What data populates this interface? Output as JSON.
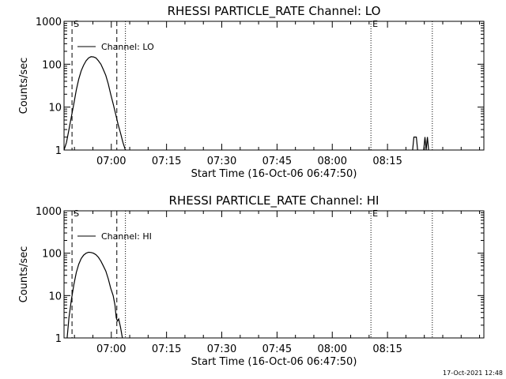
{
  "timestamp": "17-Oct-2021 12:48",
  "colors": {
    "background": "#ffffff",
    "foreground": "#000000"
  },
  "chart_data": [
    {
      "type": "line",
      "title": "RHESSI PARTICLE_RATE Channel: LO",
      "xlabel": "Start Time (16-Oct-06 06:47:50)",
      "ylabel": "Counts/sec",
      "yscale": "log",
      "ylim": [
        1,
        1000
      ],
      "yticks": [
        {
          "v": 1,
          "label": "1"
        },
        {
          "v": 10,
          "label": "10"
        },
        {
          "v": 100,
          "label": "100"
        },
        {
          "v": 1000,
          "label": "1000"
        }
      ],
      "xlim_min": [
        0,
        6840
      ],
      "xticks": [
        {
          "v": 770,
          "label": "07:00"
        },
        {
          "v": 1670,
          "label": "07:15"
        },
        {
          "v": 2570,
          "label": "07:30"
        },
        {
          "v": 3470,
          "label": "07:45"
        },
        {
          "v": 4370,
          "label": "08:00"
        },
        {
          "v": 5270,
          "label": "08:15"
        }
      ],
      "legend": "Channel: LO",
      "legend_position": "top-left",
      "markers": [
        {
          "label": "S",
          "x": 130,
          "style": "dashed"
        },
        {
          "label": "",
          "x": 860,
          "style": "dashed"
        },
        {
          "label": "",
          "x": 1000,
          "style": "dotted"
        },
        {
          "label": "E",
          "x": 5000,
          "style": "dotted"
        },
        {
          "label": "",
          "x": 6000,
          "style": "dotted"
        }
      ],
      "series": [
        {
          "name": "Channel: LO",
          "segments": [
            [
              [
                0,
                1
              ],
              [
                40,
                1.5
              ],
              [
                80,
                3
              ],
              [
                120,
                6
              ],
              [
                160,
                12
              ],
              [
                200,
                25
              ],
              [
                240,
                45
              ],
              [
                280,
                70
              ],
              [
                320,
                95
              ],
              [
                360,
                120
              ],
              [
                400,
                140
              ],
              [
                440,
                150
              ],
              [
                480,
                148
              ],
              [
                520,
                140
              ],
              [
                560,
                120
              ],
              [
                600,
                100
              ],
              [
                640,
                75
              ],
              [
                680,
                55
              ],
              [
                720,
                35
              ],
              [
                760,
                20
              ],
              [
                800,
                12
              ],
              [
                840,
                7
              ],
              [
                880,
                4
              ],
              [
                920,
                2.5
              ],
              [
                960,
                1.5
              ],
              [
                1000,
                1
              ]
            ],
            [
              [
                5680,
                1
              ],
              [
                5700,
                2
              ],
              [
                5740,
                2
              ],
              [
                5760,
                1
              ]
            ],
            [
              [
                5860,
                1
              ],
              [
                5880,
                2
              ],
              [
                5900,
                1
              ],
              [
                5920,
                2
              ],
              [
                5940,
                1
              ]
            ]
          ]
        }
      ]
    },
    {
      "type": "line",
      "title": "RHESSI PARTICLE_RATE Channel: HI",
      "xlabel": "Start Time (16-Oct-06 06:47:50)",
      "ylabel": "Counts/sec",
      "yscale": "log",
      "ylim": [
        1,
        1000
      ],
      "yticks": [
        {
          "v": 1,
          "label": "1"
        },
        {
          "v": 10,
          "label": "10"
        },
        {
          "v": 100,
          "label": "100"
        },
        {
          "v": 1000,
          "label": "1000"
        }
      ],
      "xlim_min": [
        0,
        6840
      ],
      "xticks": [
        {
          "v": 770,
          "label": "07:00"
        },
        {
          "v": 1670,
          "label": "07:15"
        },
        {
          "v": 2570,
          "label": "07:30"
        },
        {
          "v": 3470,
          "label": "07:45"
        },
        {
          "v": 4370,
          "label": "08:00"
        },
        {
          "v": 5270,
          "label": "08:15"
        }
      ],
      "legend": "Channel: HI",
      "legend_position": "top-left",
      "markers": [
        {
          "label": "S",
          "x": 130,
          "style": "dashed"
        },
        {
          "label": "",
          "x": 860,
          "style": "dashed"
        },
        {
          "label": "",
          "x": 1000,
          "style": "dotted"
        },
        {
          "label": "E",
          "x": 5000,
          "style": "dotted"
        },
        {
          "label": "",
          "x": 6000,
          "style": "dotted"
        }
      ],
      "series": [
        {
          "name": "Channel: HI",
          "segments": [
            [
              [
                50,
                1
              ],
              [
                80,
                3
              ],
              [
                120,
                8
              ],
              [
                160,
                18
              ],
              [
                200,
                35
              ],
              [
                240,
                55
              ],
              [
                280,
                75
              ],
              [
                320,
                90
              ],
              [
                360,
                100
              ],
              [
                400,
                105
              ],
              [
                440,
                104
              ],
              [
                480,
                100
              ],
              [
                520,
                92
              ],
              [
                560,
                80
              ],
              [
                600,
                65
              ],
              [
                640,
                50
              ],
              [
                680,
                38
              ],
              [
                720,
                25
              ],
              [
                760,
                15
              ],
              [
                800,
                10
              ],
              [
                830,
                6
              ],
              [
                850,
                3
              ],
              [
                870,
                2.5
              ],
              [
                890,
                2.8
              ],
              [
                920,
                1.8
              ],
              [
                950,
                1
              ]
            ]
          ]
        }
      ]
    }
  ]
}
